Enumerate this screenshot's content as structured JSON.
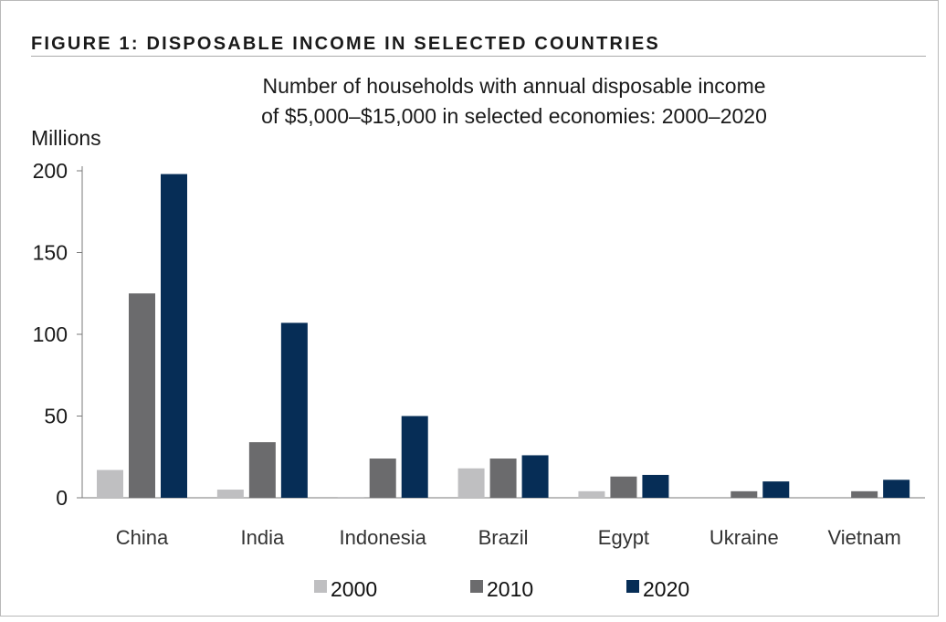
{
  "figure_label": "FIGURE 1: DISPOSABLE INCOME IN SELECTED COUNTRIES",
  "chart_data": {
    "type": "bar",
    "title_lines": [
      "Number of households with annual disposable income",
      "of $5,000–$15,000 in selected economies: 2000–2020"
    ],
    "ylabel": "Millions",
    "xlabel": "",
    "ylim": [
      0,
      200
    ],
    "yticks": [
      0,
      50,
      100,
      150,
      200
    ],
    "categories": [
      "China",
      "India",
      "Indonesia",
      "Brazil",
      "Egypt",
      "Ukraine",
      "Vietnam"
    ],
    "series": [
      {
        "name": "2000",
        "color": "#bfbfc1",
        "values": [
          17,
          5,
          0.5,
          18,
          4,
          0,
          0
        ]
      },
      {
        "name": "2010",
        "color": "#6b6b6d",
        "values": [
          125,
          34,
          24,
          24,
          13,
          4,
          4
        ]
      },
      {
        "name": "2020",
        "color": "#062d56",
        "values": [
          198,
          107,
          50,
          26,
          14,
          10,
          11
        ]
      }
    ],
    "legend_position": "bottom",
    "grid": false
  }
}
